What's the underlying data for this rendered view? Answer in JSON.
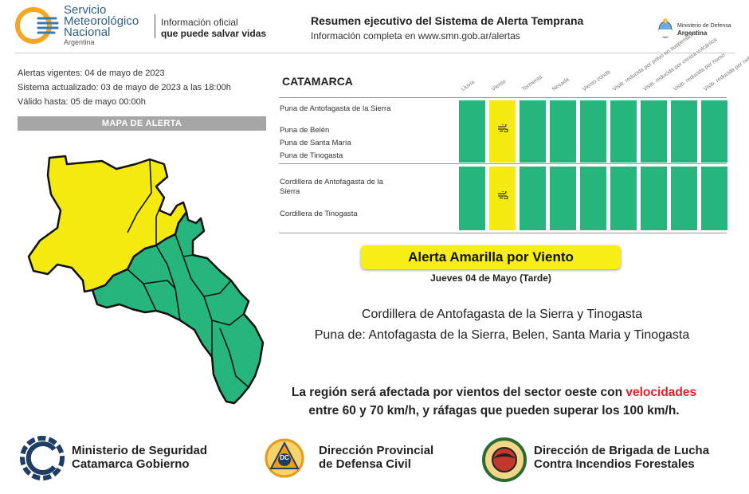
{
  "header": {
    "org_line1": "Servicio",
    "org_line2": "Meteorológico",
    "org_line3": "Nacional",
    "org_country": "Argentina",
    "official_line1": "Información oficial",
    "official_line2": "que puede salvar vidas",
    "summary_title": "Resumen ejecutivo del Sistema de Alerta Temprana",
    "summary_sub": "Información completa en www.smn.gob.ar/alertas",
    "ministry_line1": "Ministerio de Defensa",
    "ministry_line2": "Argentina"
  },
  "info": {
    "alerts_active": "Alertas vigentes: 04 de mayo de 2023",
    "system_updated": "Sistema actualizado: 03 de mayo de 2023 a las 18:00h",
    "valid_until": "Válido hasta: 05 de mayo 00:00h"
  },
  "map": {
    "title": "MAPA DE ALERTA",
    "colors": {
      "yellow": "#f4ea10",
      "green": "#26b57c"
    }
  },
  "table": {
    "province": "CATAMARCA",
    "columns": [
      "Lluvia",
      "Viento",
      "Tormenta",
      "Nevada",
      "Viento zonda",
      "Visib. reducida por polvo en suspensión",
      "Visib. reducida por ceniza volcánica",
      "Visib. reducida por humo",
      "Visib. reducida por neblina"
    ],
    "groups": [
      {
        "zones": [
          "Puna de Antofagasta de la Sierra",
          "Puna de Belén",
          "Puna de Santa María",
          "Puna de Tinogasta"
        ],
        "levels": [
          "green",
          "yellow",
          "green",
          "green",
          "green",
          "green",
          "green",
          "green",
          "green"
        ]
      },
      {
        "zones": [
          "Cordillera de Antofagasta de la Sierra",
          "Cordillera de Tinogasta"
        ],
        "levels": [
          "green",
          "yellow",
          "green",
          "green",
          "green",
          "green",
          "green",
          "green",
          "green"
        ]
      }
    ],
    "icons": {
      "alert": "wind-icon"
    }
  },
  "alert": {
    "title": "Alerta Amarilla por Viento",
    "date": "Jueves 04 de Mayo (Tarde)",
    "area_line1": "Cordillera de Antofagasta de la Sierra y Tinogasta",
    "area_line2": "Puna de: Antofagasta de la Sierra, Belen, Santa Maria y Tinogasta",
    "message_part1": "La región será afectada por vientos del sector oeste con ",
    "message_highlight1": "velocidades",
    "message_highlight2": "entre 60 y 70 km/h, y ráfagas que pueden superar los 100 km/h."
  },
  "footer": {
    "seguridad_line1": "Ministerio de Seguridad",
    "seguridad_line2": "Catamarca Gobierno",
    "defensa_badge": "DC",
    "defensa_line1": "Dirección Provincial",
    "defensa_line2": "de Defensa Civil",
    "brigada_line1": "Dirección de Brigada de Lucha",
    "brigada_line2": "Contra Incendios Forestales"
  }
}
